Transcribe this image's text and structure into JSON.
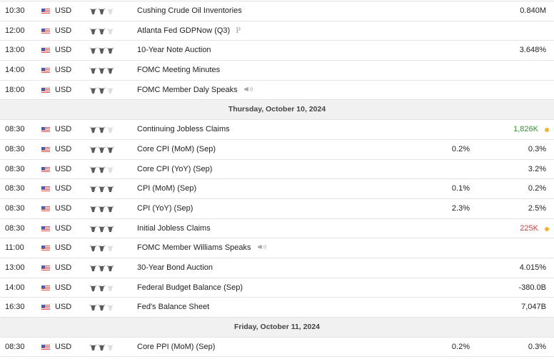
{
  "colors": {
    "bull_on": "#5a5a5a",
    "bull_off": "#dedede",
    "positive": "#2e9a2e",
    "negative": "#d43c3c",
    "indicator_dot": "#f2b233"
  },
  "rows": [
    {
      "type": "event",
      "time": "10:30",
      "currency": "USD",
      "importance": 2,
      "event": "Cushing Crude Oil Inventories",
      "forecast": "",
      "previous": "0.840M"
    },
    {
      "type": "event",
      "time": "12:00",
      "currency": "USD",
      "importance": 2,
      "event": "Atlanta Fed GDPNow (Q3)",
      "tag": "preliminary-icon",
      "forecast": "",
      "previous": ""
    },
    {
      "type": "event",
      "time": "13:00",
      "currency": "USD",
      "importance": 3,
      "event": "10-Year Note Auction",
      "forecast": "",
      "previous": "3.648%"
    },
    {
      "type": "event",
      "time": "14:00",
      "currency": "USD",
      "importance": 3,
      "event": "FOMC Meeting Minutes",
      "forecast": "",
      "previous": ""
    },
    {
      "type": "event",
      "time": "18:00",
      "currency": "USD",
      "importance": 2,
      "event": "FOMC Member Daly Speaks",
      "tag": "speech-icon",
      "forecast": "",
      "previous": ""
    },
    {
      "type": "date",
      "date": "Thursday, October 10, 2024"
    },
    {
      "type": "event",
      "time": "08:30",
      "currency": "USD",
      "importance": 2,
      "event": "Continuing Jobless Claims",
      "forecast": "",
      "previous": "1,826K",
      "previous_color": "positive",
      "dot": true
    },
    {
      "type": "event",
      "time": "08:30",
      "currency": "USD",
      "importance": 3,
      "event": "Core CPI (MoM) (Sep)",
      "forecast": "0.2%",
      "previous": "0.3%"
    },
    {
      "type": "event",
      "time": "08:30",
      "currency": "USD",
      "importance": 2,
      "event": "Core CPI (YoY) (Sep)",
      "forecast": "",
      "previous": "3.2%"
    },
    {
      "type": "event",
      "time": "08:30",
      "currency": "USD",
      "importance": 3,
      "event": "CPI (MoM) (Sep)",
      "forecast": "0.1%",
      "previous": "0.2%"
    },
    {
      "type": "event",
      "time": "08:30",
      "currency": "USD",
      "importance": 3,
      "event": "CPI (YoY) (Sep)",
      "forecast": "2.3%",
      "previous": "2.5%"
    },
    {
      "type": "event",
      "time": "08:30",
      "currency": "USD",
      "importance": 3,
      "event": "Initial Jobless Claims",
      "forecast": "",
      "previous": "225K",
      "previous_color": "negative",
      "dot": true
    },
    {
      "type": "event",
      "time": "11:00",
      "currency": "USD",
      "importance": 2,
      "event": "FOMC Member Williams Speaks",
      "tag": "speech-icon",
      "forecast": "",
      "previous": ""
    },
    {
      "type": "event",
      "time": "13:00",
      "currency": "USD",
      "importance": 3,
      "event": "30-Year Bond Auction",
      "forecast": "",
      "previous": "4.015%"
    },
    {
      "type": "event",
      "time": "14:00",
      "currency": "USD",
      "importance": 2,
      "event": "Federal Budget Balance (Sep)",
      "forecast": "",
      "previous": "-380.0B"
    },
    {
      "type": "event",
      "time": "16:30",
      "currency": "USD",
      "importance": 2,
      "event": "Fed's Balance Sheet",
      "forecast": "",
      "previous": "7,047B"
    },
    {
      "type": "date",
      "date": "Friday, October 11, 2024"
    },
    {
      "type": "event",
      "time": "08:30",
      "currency": "USD",
      "importance": 2,
      "event": "Core PPI (MoM) (Sep)",
      "forecast": "0.2%",
      "previous": "0.3%"
    }
  ]
}
